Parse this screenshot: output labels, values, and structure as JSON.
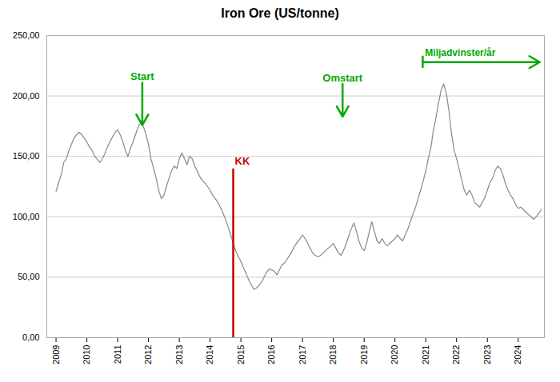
{
  "chart_data": {
    "type": "line",
    "title": "Iron Ore (US/tonne)",
    "color": "#888888",
    "xlim": [
      2008.7,
      2024.85
    ],
    "xticks": [
      2009,
      2010,
      2011,
      2012,
      2013,
      2014,
      2015,
      2016,
      2017,
      2018,
      2019,
      2020,
      2021,
      2022,
      2023,
      2024
    ],
    "ylim": [
      0,
      250
    ],
    "yticks": [
      {
        "value": 0,
        "label": "0,00"
      },
      {
        "value": 50,
        "label": "50,00"
      },
      {
        "value": 100,
        "label": "100,00"
      },
      {
        "value": 150,
        "label": "150,00"
      },
      {
        "value": 200,
        "label": "200,00"
      },
      {
        "value": 250,
        "label": "250,00"
      }
    ],
    "grid": "y",
    "x": [
      2009.0,
      2009.08,
      2009.17,
      2009.25,
      2009.33,
      2009.42,
      2009.5,
      2009.58,
      2009.67,
      2009.75,
      2009.83,
      2009.92,
      2010.0,
      2010.08,
      2010.17,
      2010.25,
      2010.33,
      2010.42,
      2010.5,
      2010.58,
      2010.67,
      2010.75,
      2010.83,
      2010.92,
      2011.0,
      2011.08,
      2011.17,
      2011.25,
      2011.33,
      2011.42,
      2011.5,
      2011.58,
      2011.67,
      2011.75,
      2011.83,
      2011.92,
      2012.0,
      2012.08,
      2012.17,
      2012.25,
      2012.33,
      2012.42,
      2012.5,
      2012.58,
      2012.67,
      2012.75,
      2012.83,
      2012.92,
      2013.0,
      2013.08,
      2013.17,
      2013.25,
      2013.33,
      2013.42,
      2013.5,
      2013.58,
      2013.67,
      2013.75,
      2013.83,
      2013.92,
      2014.0,
      2014.08,
      2014.17,
      2014.25,
      2014.33,
      2014.42,
      2014.5,
      2014.58,
      2014.67,
      2014.75,
      2014.83,
      2014.92,
      2015.0,
      2015.08,
      2015.17,
      2015.25,
      2015.33,
      2015.42,
      2015.5,
      2015.58,
      2015.67,
      2015.75,
      2015.83,
      2015.92,
      2016.0,
      2016.08,
      2016.17,
      2016.25,
      2016.33,
      2016.42,
      2016.5,
      2016.58,
      2016.67,
      2016.75,
      2016.83,
      2016.92,
      2017.0,
      2017.08,
      2017.17,
      2017.25,
      2017.33,
      2017.42,
      2017.5,
      2017.58,
      2017.67,
      2017.75,
      2017.83,
      2017.92,
      2018.0,
      2018.08,
      2018.17,
      2018.25,
      2018.33,
      2018.42,
      2018.5,
      2018.58,
      2018.67,
      2018.75,
      2018.83,
      2018.92,
      2019.0,
      2019.08,
      2019.17,
      2019.25,
      2019.33,
      2019.42,
      2019.5,
      2019.58,
      2019.67,
      2019.75,
      2019.83,
      2019.92,
      2020.0,
      2020.08,
      2020.17,
      2020.25,
      2020.33,
      2020.42,
      2020.5,
      2020.58,
      2020.67,
      2020.75,
      2020.83,
      2020.92,
      2021.0,
      2021.08,
      2021.17,
      2021.25,
      2021.33,
      2021.42,
      2021.5,
      2021.58,
      2021.67,
      2021.75,
      2021.83,
      2021.92,
      2022.0,
      2022.08,
      2022.17,
      2022.25,
      2022.33,
      2022.42,
      2022.5,
      2022.58,
      2022.67,
      2022.75,
      2022.83,
      2022.92,
      2023.0,
      2023.08,
      2023.17,
      2023.25,
      2023.33,
      2023.42,
      2023.5,
      2023.58,
      2023.67,
      2023.75,
      2023.83,
      2023.92,
      2024.0,
      2024.08,
      2024.17,
      2024.25,
      2024.33,
      2024.42,
      2024.5,
      2024.58,
      2024.67,
      2024.75
    ],
    "values": [
      121,
      128,
      135,
      145,
      148,
      155,
      160,
      165,
      168,
      170,
      168,
      165,
      162,
      158,
      155,
      150,
      148,
      145,
      148,
      152,
      158,
      162,
      166,
      170,
      172,
      168,
      162,
      155,
      150,
      157,
      162,
      168,
      175,
      178,
      175,
      168,
      160,
      148,
      140,
      132,
      122,
      115,
      118,
      125,
      132,
      138,
      142,
      140,
      148,
      153,
      148,
      143,
      150,
      148,
      142,
      138,
      133,
      130,
      128,
      125,
      122,
      118,
      115,
      112,
      108,
      103,
      98,
      92,
      85,
      78,
      72,
      67,
      63,
      58,
      53,
      48,
      44,
      40,
      41,
      43,
      46,
      50,
      54,
      57,
      56,
      55,
      52,
      56,
      60,
      62,
      65,
      68,
      72,
      76,
      79,
      82,
      85,
      82,
      78,
      74,
      70,
      68,
      67,
      68,
      70,
      72,
      74,
      76,
      78,
      74,
      70,
      68,
      72,
      78,
      84,
      90,
      95,
      88,
      80,
      74,
      72,
      78,
      88,
      96,
      88,
      80,
      78,
      82,
      78,
      76,
      78,
      80,
      82,
      85,
      82,
      80,
      85,
      90,
      96,
      102,
      108,
      115,
      122,
      130,
      138,
      148,
      158,
      172,
      182,
      195,
      205,
      210,
      202,
      188,
      170,
      155,
      148,
      140,
      130,
      122,
      118,
      122,
      118,
      112,
      110,
      108,
      112,
      116,
      122,
      128,
      132,
      138,
      142,
      140,
      135,
      128,
      122,
      118,
      115,
      110,
      107,
      108,
      106,
      104,
      102,
      100,
      98,
      100,
      103,
      106
    ],
    "annotations": [
      {
        "text": "KK",
        "x": 2014.75,
        "y": 143,
        "color": "#cc0000",
        "line": [
          {
            "x": 2014.75,
            "y": 0
          },
          {
            "x": 2014.75,
            "y": 140
          }
        ]
      },
      {
        "text": "Start",
        "x": 2011.8,
        "y": 213,
        "color": "#00aa00",
        "arrow_to": {
          "x": 2011.8,
          "y": 176
        }
      },
      {
        "text": "Omstart",
        "x": 2018.3,
        "y": 212,
        "color": "#00aa00",
        "arrow_to": {
          "x": 2018.3,
          "y": 183
        }
      },
      {
        "text": "Miljadvinster/år",
        "x": 2020.9,
        "y": 228,
        "color": "#00aa00",
        "arrow_to": {
          "x": 2024.7,
          "y": 228
        },
        "tick_y": [
          223,
          233
        ]
      }
    ]
  }
}
